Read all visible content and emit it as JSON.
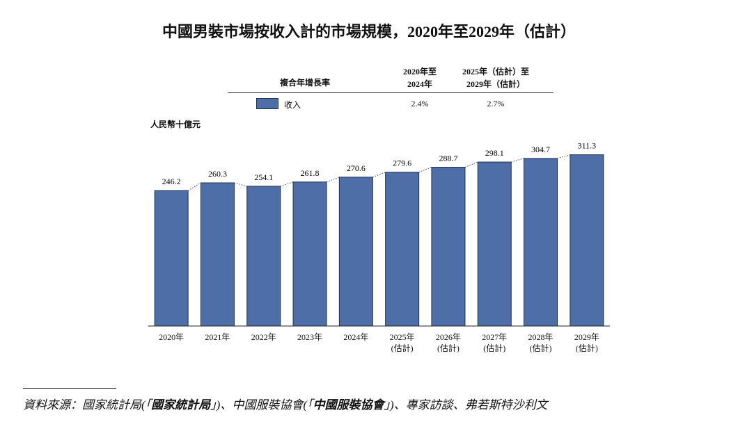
{
  "chart_data": {
    "type": "bar",
    "title": "中國男裝市場按收入計的市場規模，2020年至2029年（估計）",
    "y_label": "人民幣十億元",
    "categories": [
      "2020年",
      "2021年",
      "2022年",
      "2023年",
      "2024年",
      "2025年\n(估計)",
      "2026年\n(估計)",
      "2027年\n(估計)",
      "2028年\n(估計)",
      "2029年\n(估計)"
    ],
    "values": [
      246.2,
      260.3,
      254.1,
      261.8,
      270.6,
      279.6,
      288.7,
      298.1,
      304.7,
      311.3
    ],
    "color": "#4e6ea8",
    "ylim": [
      0,
      350
    ]
  },
  "cagr_table": {
    "header": [
      "複合年增長率",
      "2020年至\n2024年",
      "2025年（估計）至\n2029年（估計）"
    ],
    "rows": [
      {
        "label": "收入",
        "color": "#4e6ea8",
        "values": [
          "2.4%",
          "2.7%"
        ]
      }
    ]
  },
  "source": [
    {
      "text": "資料來源：國家統計局(「",
      "bold": false
    },
    {
      "text": "國家統計局",
      "bold": true
    },
    {
      "text": "」)、中國服裝協會(「",
      "bold": false
    },
    {
      "text": "中國服裝協會",
      "bold": true
    },
    {
      "text": "」)、專家訪談、弗若斯特沙利文",
      "bold": false
    }
  ]
}
